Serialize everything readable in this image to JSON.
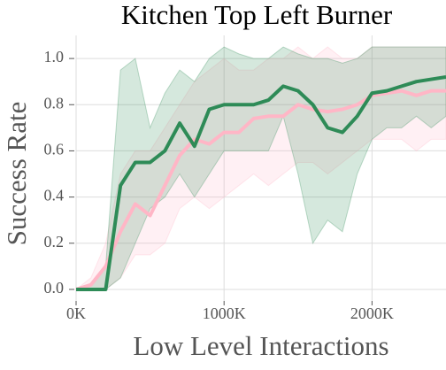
{
  "chart_data": {
    "type": "line",
    "title": "Kitchen Top Left Burner",
    "xlabel": "Low Level Interactions",
    "ylabel": "Success Rate",
    "x": [
      0,
      100000,
      200000,
      300000,
      400000,
      500000,
      600000,
      700000,
      800000,
      900000,
      1000000,
      1100000,
      1200000,
      1300000,
      1400000,
      1500000,
      1600000,
      1700000,
      1800000,
      1900000,
      2000000,
      2100000,
      2200000,
      2300000,
      2400000,
      2500000
    ],
    "series": [
      {
        "color": "#ffb6c6",
        "values": [
          0,
          0.02,
          0.1,
          0.25,
          0.37,
          0.32,
          0.45,
          0.58,
          0.65,
          0.63,
          0.68,
          0.68,
          0.74,
          0.75,
          0.75,
          0.8,
          0.78,
          0.77,
          0.78,
          0.8,
          0.84,
          0.85,
          0.86,
          0.84,
          0.86,
          0.86
        ],
        "upper": [
          0,
          0.05,
          0.2,
          0.5,
          0.6,
          0.6,
          0.7,
          0.8,
          0.9,
          0.95,
          1.0,
          0.95,
          0.95,
          1.0,
          1.0,
          1.05,
          1.0,
          1.05,
          1.0,
          1.0,
          1.05,
          1.05,
          1.05,
          1.05,
          1.05,
          1.05
        ],
        "lower": [
          0,
          0,
          0,
          0.05,
          0.15,
          0.15,
          0.2,
          0.35,
          0.4,
          0.35,
          0.4,
          0.45,
          0.5,
          0.45,
          0.5,
          0.55,
          0.55,
          0.5,
          0.55,
          0.6,
          0.65,
          0.65,
          0.65,
          0.6,
          0.65,
          0.65
        ]
      },
      {
        "color": "#2e8b57",
        "values": [
          0,
          0,
          0,
          0.45,
          0.55,
          0.55,
          0.6,
          0.72,
          0.62,
          0.78,
          0.8,
          0.8,
          0.8,
          0.82,
          0.88,
          0.86,
          0.8,
          0.7,
          0.68,
          0.75,
          0.85,
          0.86,
          0.88,
          0.9,
          0.91,
          0.92
        ],
        "upper": [
          0,
          0.02,
          0.1,
          0.95,
          1.0,
          0.7,
          0.85,
          0.95,
          0.9,
          1.0,
          1.05,
          1.02,
          1.0,
          1.0,
          1.05,
          1.02,
          1.0,
          1.0,
          0.98,
          1.0,
          1.05,
          1.05,
          1.05,
          1.05,
          1.05,
          1.05
        ],
        "lower": [
          0,
          0,
          0,
          0.05,
          0.2,
          0.35,
          0.4,
          0.5,
          0.4,
          0.5,
          0.6,
          0.6,
          0.6,
          0.6,
          0.75,
          0.5,
          0.2,
          0.3,
          0.25,
          0.5,
          0.65,
          0.7,
          0.7,
          0.75,
          0.7,
          0.75
        ]
      }
    ],
    "xlim": [
      0,
      2500000
    ],
    "xticks": [
      {
        "value": 0,
        "label": "0K"
      },
      {
        "value": 1000000,
        "label": "1000K"
      },
      {
        "value": 2000000,
        "label": "2000K"
      }
    ],
    "ylim": [
      -0.05,
      1.1
    ],
    "yticks": [
      {
        "value": 0,
        "label": "0.0"
      },
      {
        "value": 0.2,
        "label": "0.2"
      },
      {
        "value": 0.4,
        "label": "0.4"
      },
      {
        "value": 0.6,
        "label": "0.6"
      },
      {
        "value": 0.8,
        "label": "0.8"
      },
      {
        "value": 1.0,
        "label": "1.0"
      }
    ],
    "grid": true
  }
}
